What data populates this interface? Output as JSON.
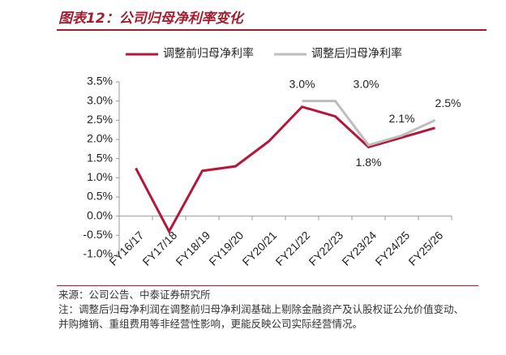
{
  "header": {
    "title": "图表12：公司归母净利率变化"
  },
  "chart_data": {
    "type": "line",
    "categories": [
      "FY16/17",
      "FY17/18",
      "FY18/19",
      "FY19/20",
      "FY20/21",
      "FY21/22",
      "FY22/23",
      "FY23/24",
      "FY24/25",
      "FY25/26"
    ],
    "series": [
      {
        "name": "调整前归母净利率",
        "color": "#b5163a",
        "values": [
          1.25,
          -0.4,
          1.18,
          1.3,
          1.95,
          2.85,
          2.6,
          1.8,
          2.05,
          2.3
        ],
        "value_labels": [
          null,
          null,
          null,
          null,
          null,
          null,
          null,
          "1.8%",
          null,
          null
        ]
      },
      {
        "name": "调整后归母净利率",
        "color": "#bdbdbd",
        "values": [
          null,
          null,
          null,
          null,
          null,
          3.0,
          3.0,
          1.85,
          2.1,
          2.5
        ],
        "value_labels": [
          null,
          null,
          null,
          null,
          null,
          "3.0%",
          "3.0%",
          null,
          "2.1%",
          "2.5%"
        ]
      }
    ],
    "ylim": [
      -1.0,
      3.5
    ],
    "yticks": [
      {
        "value": -1.0,
        "label": "-1.0%"
      },
      {
        "value": -0.5,
        "label": "-0.5%"
      },
      {
        "value": 0,
        "label": "0.0%"
      },
      {
        "value": 0.5,
        "label": "0.5%"
      },
      {
        "value": 1.0,
        "label": "1.0%"
      },
      {
        "value": 1.5,
        "label": "1.5%"
      },
      {
        "value": 2.0,
        "label": "2.0%"
      },
      {
        "value": 2.5,
        "label": "2.5%"
      },
      {
        "value": 3.0,
        "label": "3.0%"
      },
      {
        "value": 3.5,
        "label": "3.5%"
      }
    ],
    "legend": "top"
  },
  "notes": {
    "source": "来源：公司公告、中泰证券研究所",
    "note": "注：调整后归母净利润在调整前归母净利润基础上剔除金融资产及认股权证公允价值变动、并购摊销、重组费用等非经营性影响，更能反映公司实际经营情况。"
  }
}
